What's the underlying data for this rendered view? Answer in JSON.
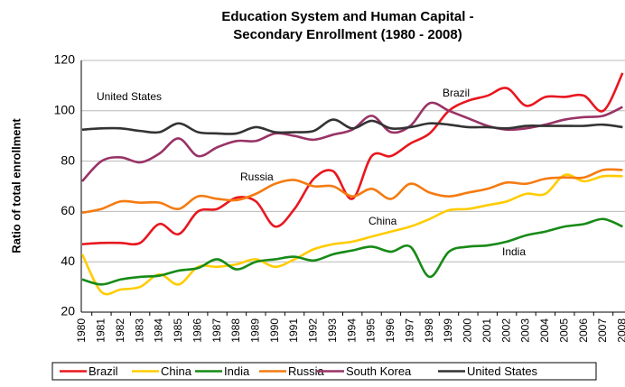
{
  "chart_data": {
    "type": "line",
    "title": [
      "Education System and Human Capital -",
      "Secondary Enrollment (1980 - 2008)"
    ],
    "y_label": "Ratio of total enrollment",
    "categories": [
      "1980",
      "1981",
      "1982",
      "1983",
      "1984",
      "1985",
      "1986",
      "1987",
      "1988",
      "1989",
      "1990",
      "1991",
      "1992",
      "1993",
      "1994",
      "1995",
      "1996",
      "1997",
      "1998",
      "1999",
      "2000",
      "2001",
      "2002",
      "2003",
      "2004",
      "2005",
      "2006",
      "2007",
      "2008"
    ],
    "ylim": [
      20,
      120
    ],
    "yticks": [
      20,
      40,
      60,
      80,
      100,
      120
    ],
    "grid": true,
    "legend": "bottom",
    "annotations": [
      "Brazil",
      "United States",
      "Russia",
      "China",
      "India"
    ],
    "series": [
      {
        "name": "Brazil",
        "color": "#e8171f",
        "values": [
          47,
          47.5,
          47.5,
          47.5,
          55,
          51,
          60,
          61,
          65.5,
          64,
          54,
          61,
          73,
          76,
          65,
          82,
          82,
          87,
          91,
          100,
          104,
          106,
          109,
          102,
          105.5,
          105.5,
          106,
          100,
          115
        ]
      },
      {
        "name": "China",
        "color": "#ffcc00",
        "values": [
          43,
          28,
          29,
          30,
          35,
          31,
          38,
          38,
          39,
          41,
          38,
          41,
          45,
          47,
          48,
          50,
          52,
          54,
          57,
          60.5,
          61,
          62.5,
          64,
          67,
          67,
          74.5,
          72,
          74,
          74
        ]
      },
      {
        "name": "India",
        "color": "#178a17",
        "values": [
          33,
          31,
          33,
          34,
          34.5,
          36.5,
          37.5,
          41,
          37,
          40,
          41,
          42,
          40.5,
          43,
          44.5,
          46,
          44,
          46,
          34,
          44,
          46,
          46.5,
          48,
          50.5,
          52,
          54,
          55,
          57,
          54
        ]
      },
      {
        "name": "Russia",
        "color": "#f57a10",
        "values": [
          59.5,
          61,
          64,
          63.5,
          63.5,
          61,
          66,
          65,
          64.5,
          67,
          71,
          72.5,
          70,
          70,
          66,
          69,
          65,
          71,
          67.5,
          66,
          67.5,
          69,
          71.5,
          71,
          73,
          73.5,
          73.5,
          76.5,
          76.5
        ]
      },
      {
        "name": "South Korea",
        "color": "#993366",
        "values": [
          72,
          80,
          81.5,
          79.5,
          83,
          89,
          82,
          85.5,
          88,
          88,
          91,
          90,
          88.5,
          90.5,
          92.5,
          98,
          91.5,
          94,
          103,
          100,
          97,
          94,
          92.5,
          93,
          94.5,
          96.5,
          97.5,
          98,
          101.5
        ]
      },
      {
        "name": "United States",
        "color": "#333333",
        "values": [
          92.5,
          93,
          93,
          92,
          91.5,
          95,
          91.5,
          91,
          91,
          93.5,
          91.5,
          91.5,
          92,
          96.5,
          93,
          96,
          93,
          93.5,
          95,
          94.5,
          93.5,
          93.5,
          93,
          94,
          94,
          94,
          94,
          94.5,
          93.5
        ]
      }
    ]
  }
}
